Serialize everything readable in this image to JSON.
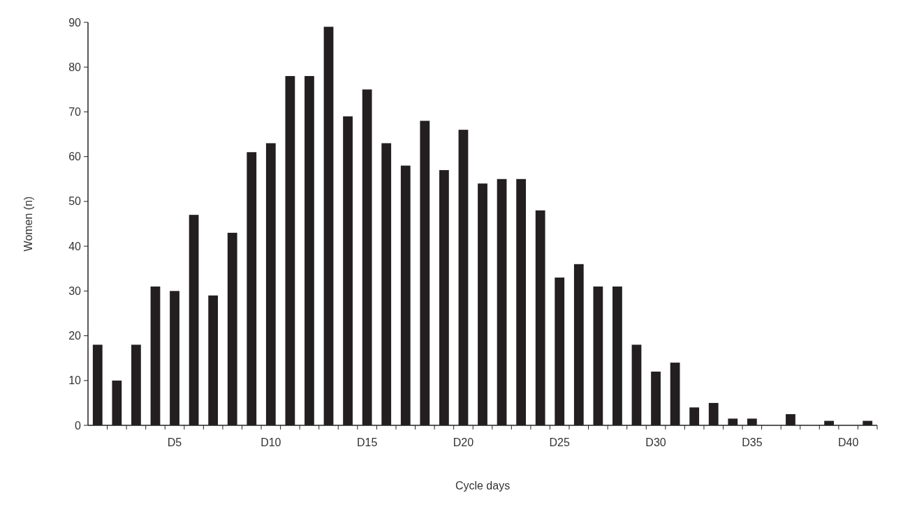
{
  "chart_data": {
    "type": "bar",
    "xlabel": "Cycle days",
    "ylabel": "Women (n)",
    "categories": [
      null,
      null,
      null,
      null,
      "D5",
      null,
      null,
      null,
      null,
      "D10",
      null,
      null,
      null,
      null,
      "D15",
      null,
      null,
      null,
      null,
      "D20",
      null,
      null,
      null,
      null,
      "D25",
      null,
      null,
      null,
      null,
      "D30",
      null,
      null,
      null,
      null,
      "D35",
      null,
      null,
      null,
      null,
      "D40",
      null
    ],
    "values": [
      18,
      10,
      18,
      31,
      30,
      47,
      29,
      43,
      61,
      63,
      78,
      78,
      89,
      69,
      75,
      63,
      58,
      68,
      57,
      66,
      54,
      55,
      55,
      48,
      33,
      36,
      31,
      31,
      18,
      12,
      14,
      4,
      5,
      1.5,
      1.5,
      0,
      2.5,
      0,
      1,
      0,
      1
    ],
    "color": "#231f20",
    "ylim": [
      0,
      90
    ],
    "yticks": [
      0,
      10,
      20,
      30,
      40,
      50,
      60,
      70,
      80,
      90
    ],
    "grid": false
  }
}
